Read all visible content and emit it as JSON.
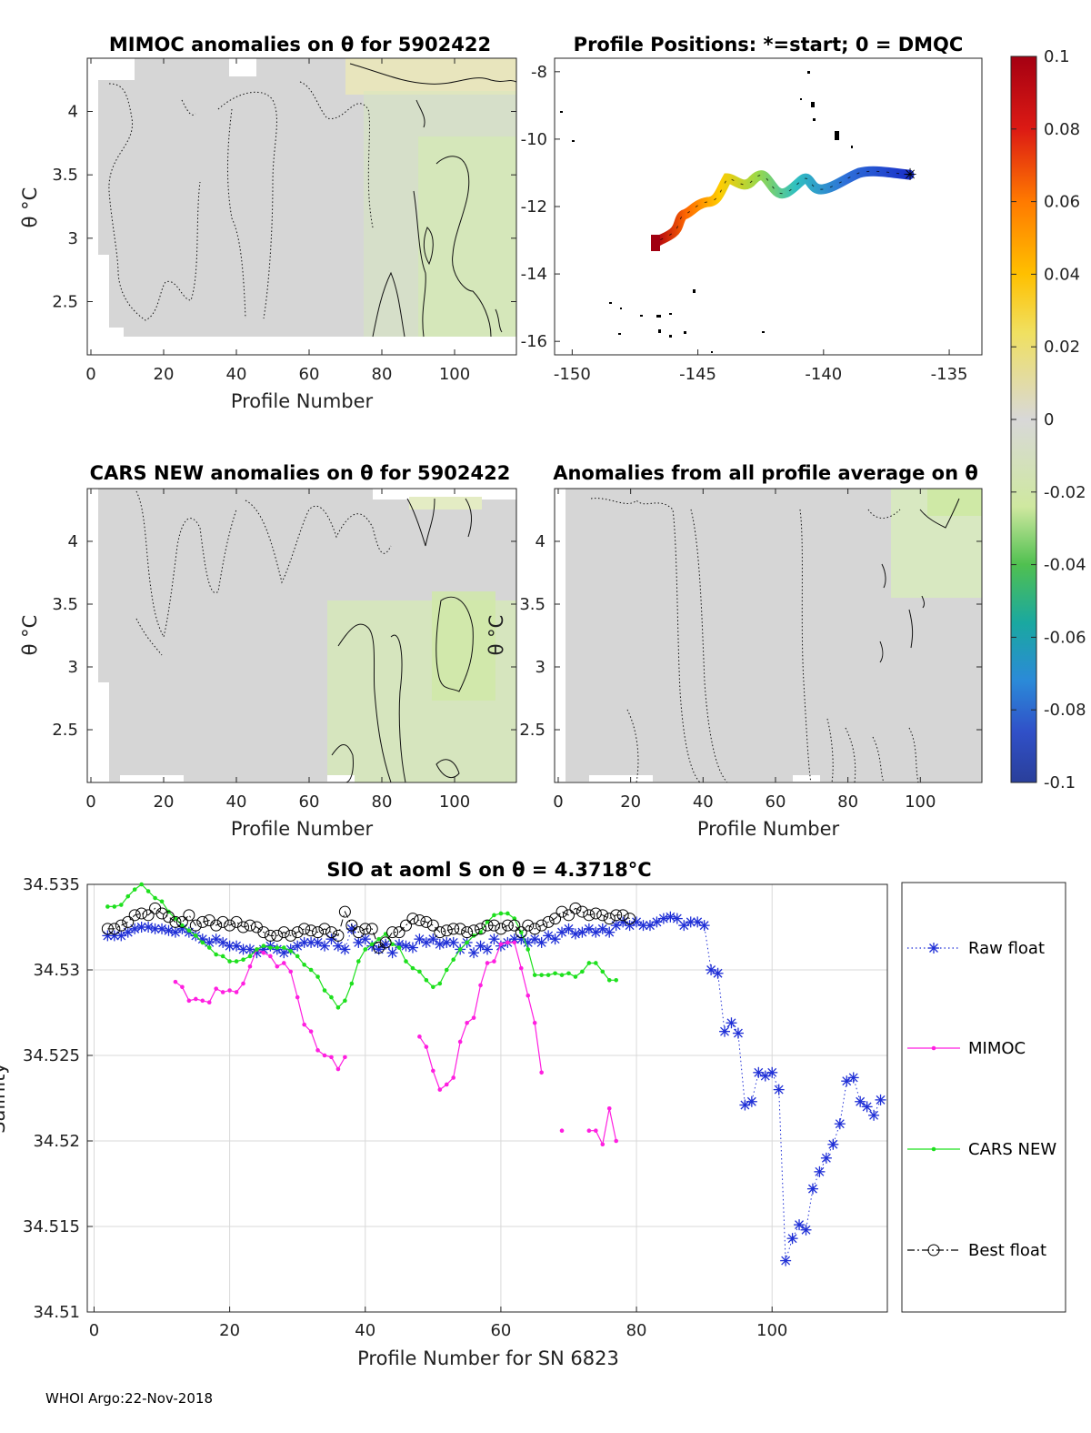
{
  "colors": {
    "raw": "#1f2fd6",
    "mimoc": "#ff1fe0",
    "cars": "#1ee01e",
    "best": "#000000",
    "field_base": "#d6d6d6",
    "field_pos": "#f0ecb0",
    "field_neg": "#d8ecc0"
  },
  "footer": "WHOI Argo:22-Nov-2018",
  "panels": {
    "mimoc": {
      "title": "MIMOC anomalies on θ  for 5902422",
      "xlabel": "Profile Number",
      "ylabel": "θ °C",
      "xticks": [
        0,
        20,
        40,
        60,
        80,
        100
      ],
      "yticks": [
        2.5,
        3,
        3.5,
        4
      ],
      "xlim": [
        -1,
        117
      ],
      "ylim": [
        2.08,
        4.42
      ]
    },
    "positions": {
      "title": "Profile Positions: *=start; 0 = DMQC",
      "xticks": [
        -150,
        -145,
        -140,
        -135
      ],
      "yticks": [
        -8,
        -10,
        -12,
        -14,
        -16
      ],
      "xlim": [
        -150.7,
        -133.7
      ],
      "ylim": [
        -16.4,
        -7.6
      ]
    },
    "cars": {
      "title": "CARS NEW anomalies on θ for 5902422",
      "xlabel": "Profile Number",
      "ylabel": "θ °C",
      "xticks": [
        0,
        20,
        40,
        60,
        80,
        100
      ],
      "yticks": [
        2.5,
        3,
        3.5,
        4
      ],
      "xlim": [
        -1,
        117
      ],
      "ylim": [
        2.08,
        4.42
      ]
    },
    "avg": {
      "title": "Anomalies from all profile average on θ",
      "xlabel": "Profile Number",
      "ylabel": "θ °C",
      "xticks": [
        0,
        20,
        40,
        60,
        80,
        100
      ],
      "yticks": [
        2.5,
        3,
        3.5,
        4
      ],
      "xlim": [
        -1,
        117
      ],
      "ylim": [
        2.08,
        4.42
      ]
    }
  },
  "colorbar": {
    "ticks": [
      "0.1",
      "0.08",
      "0.06",
      "0.04",
      "0.02",
      "0",
      "-0.02",
      "-0.04",
      "-0.06",
      "-0.08",
      "-0.1"
    ],
    "range": [
      -0.1,
      0.1
    ]
  },
  "chart_data": {
    "type": "line",
    "title": "SIO at aoml S on θ = 4.3718°C",
    "xlabel": "Profile Number for SN 6823",
    "ylabel": "Salinity",
    "xlim": [
      -1,
      117
    ],
    "ylim": [
      34.51,
      34.535
    ],
    "xticks": [
      0,
      20,
      40,
      60,
      80,
      100
    ],
    "yticks": [
      "34.51",
      "34.515",
      "34.52",
      "34.525",
      "34.53",
      "34.535"
    ],
    "grid": true,
    "legend_position": "right",
    "series": [
      {
        "name": "Raw float",
        "key": "raw",
        "marker": "asterisk",
        "line": "dotted",
        "x": [
          2,
          3,
          4,
          5,
          6,
          7,
          8,
          9,
          10,
          11,
          12,
          13,
          14,
          15,
          16,
          17,
          18,
          19,
          20,
          21,
          22,
          23,
          24,
          25,
          26,
          27,
          28,
          29,
          30,
          31,
          32,
          33,
          34,
          35,
          36,
          37,
          38,
          39,
          40,
          41,
          42,
          43,
          44,
          45,
          46,
          47,
          48,
          49,
          50,
          51,
          52,
          53,
          54,
          55,
          56,
          57,
          58,
          59,
          60,
          61,
          62,
          63,
          64,
          65,
          66,
          67,
          68,
          69,
          70,
          71,
          72,
          73,
          74,
          75,
          76,
          77,
          78,
          79,
          80,
          81,
          82,
          83,
          84,
          85,
          86,
          87,
          88,
          89,
          90,
          91,
          92,
          93,
          94,
          95,
          96,
          97,
          98,
          99,
          100,
          101,
          102,
          103,
          104,
          105,
          106,
          107,
          108,
          109,
          110,
          111,
          112,
          113,
          114,
          115,
          116
        ],
        "y": [
          34.532,
          34.532,
          34.532,
          34.5322,
          34.5324,
          34.5325,
          34.5325,
          34.5324,
          34.5324,
          34.5323,
          34.5322,
          34.5324,
          34.5322,
          34.532,
          34.5318,
          34.5316,
          34.5318,
          34.5316,
          34.5314,
          34.5314,
          34.5312,
          34.5312,
          34.531,
          34.5312,
          34.5314,
          34.5312,
          34.531,
          34.5312,
          34.5314,
          34.5316,
          34.5316,
          34.5316,
          34.5314,
          34.5318,
          34.5314,
          34.5312,
          34.5324,
          34.5316,
          34.5318,
          34.5314,
          34.5312,
          34.5315,
          34.531,
          34.5315,
          34.5314,
          34.5313,
          34.5318,
          34.5316,
          34.5318,
          34.5315,
          34.5316,
          34.5316,
          34.5312,
          34.5316,
          34.531,
          34.5314,
          34.5312,
          34.5318,
          34.5314,
          34.5316,
          34.5318,
          34.5318,
          34.5316,
          34.5318,
          34.5316,
          34.532,
          34.5318,
          34.5322,
          34.5324,
          34.5321,
          34.5322,
          34.5324,
          34.5322,
          34.5324,
          34.5322,
          34.5326,
          34.5328,
          34.5326,
          34.5328,
          34.5326,
          34.5326,
          34.5328,
          34.533,
          34.5331,
          34.533,
          34.5326,
          34.5328,
          34.5328,
          34.5326,
          34.53,
          34.5298,
          34.5264,
          34.5269,
          34.5263,
          34.5221,
          34.5223,
          34.524,
          34.5238,
          34.524,
          34.523,
          34.513,
          34.5143,
          34.5151,
          34.5148,
          34.5172,
          34.5182,
          34.519,
          34.5198,
          34.521,
          34.5235,
          34.5237,
          34.5223,
          34.522,
          34.5215,
          34.5224
        ]
      },
      {
        "name": "MIMOC",
        "key": "mimoc",
        "marker": "dot",
        "line": "solid",
        "x": [
          12,
          13,
          14,
          15,
          16,
          17,
          18,
          19,
          20,
          21,
          22,
          23,
          24,
          25,
          26,
          27,
          28,
          29,
          30,
          31,
          32,
          33,
          34,
          35,
          36,
          37,
          null,
          48,
          49,
          50,
          51,
          52,
          53,
          54,
          55,
          56,
          57,
          58,
          59,
          60,
          61,
          62,
          63,
          64,
          65,
          66,
          null,
          69,
          null,
          73,
          74,
          75,
          76,
          77
        ],
        "y": [
          34.5293,
          34.529,
          34.5282,
          34.5283,
          34.5282,
          34.5281,
          34.5289,
          34.5287,
          34.5288,
          34.5287,
          34.5292,
          34.5302,
          34.5312,
          34.531,
          34.5308,
          34.5302,
          34.5304,
          34.5299,
          34.5284,
          34.5268,
          34.5264,
          34.5253,
          34.525,
          34.5249,
          34.5242,
          34.5249,
          null,
          34.5261,
          34.5255,
          34.5241,
          34.523,
          34.5233,
          34.5237,
          34.5258,
          34.5269,
          34.5272,
          34.5291,
          34.5304,
          34.5305,
          34.5315,
          34.5316,
          34.5316,
          34.5301,
          34.5285,
          34.5269,
          34.524,
          null,
          34.5206,
          null,
          34.5206,
          34.5206,
          34.5198,
          34.5219,
          34.52
        ]
      },
      {
        "name": "CARS NEW",
        "key": "cars",
        "marker": "dot",
        "line": "solid",
        "x": [
          2,
          3,
          4,
          5,
          6,
          7,
          8,
          9,
          10,
          11,
          12,
          13,
          14,
          15,
          16,
          17,
          18,
          19,
          20,
          21,
          22,
          23,
          24,
          25,
          26,
          27,
          28,
          29,
          30,
          31,
          32,
          33,
          34,
          35,
          36,
          37,
          38,
          39,
          40,
          41,
          42,
          43,
          44,
          45,
          46,
          47,
          48,
          49,
          50,
          51,
          52,
          53,
          54,
          55,
          56,
          57,
          58,
          59,
          60,
          61,
          62,
          63,
          64,
          65,
          66,
          67,
          68,
          69,
          70,
          71,
          72,
          73,
          74,
          75,
          76,
          77
        ],
        "y": [
          34.5337,
          34.5337,
          34.5338,
          34.5343,
          34.5347,
          34.535,
          34.5346,
          34.5342,
          34.534,
          34.5334,
          34.533,
          34.5326,
          34.5323,
          34.532,
          34.5316,
          34.5313,
          34.5309,
          34.5308,
          34.5305,
          34.5305,
          34.5306,
          34.5308,
          34.5312,
          34.5314,
          34.5313,
          34.5313,
          34.5313,
          34.5311,
          34.5308,
          34.5303,
          34.53,
          34.5296,
          34.5288,
          34.5284,
          34.5278,
          34.5282,
          34.5292,
          34.5305,
          34.5312,
          34.5315,
          34.5318,
          34.5321,
          34.5315,
          34.5313,
          34.5305,
          34.5301,
          34.5299,
          34.5294,
          34.529,
          34.5292,
          34.53,
          34.5306,
          34.5312,
          34.5316,
          34.532,
          34.5322,
          34.5328,
          34.5332,
          34.5333,
          34.5333,
          34.533,
          34.5322,
          34.5312,
          34.5297,
          34.5297,
          34.5297,
          34.5298,
          34.5297,
          34.5298,
          34.5296,
          34.5299,
          34.5304,
          34.5304,
          34.5299,
          34.5294,
          34.5294
        ]
      },
      {
        "name": "Best float",
        "key": "best",
        "marker": "circle",
        "line": "dashdot",
        "x": [
          2,
          3,
          4,
          5,
          6,
          7,
          8,
          9,
          10,
          11,
          12,
          13,
          14,
          15,
          16,
          17,
          18,
          19,
          20,
          21,
          22,
          23,
          24,
          25,
          26,
          27,
          28,
          29,
          30,
          31,
          32,
          33,
          34,
          35,
          36,
          37,
          38,
          39,
          40,
          41,
          42,
          43,
          44,
          45,
          46,
          47,
          48,
          49,
          50,
          51,
          52,
          53,
          54,
          55,
          56,
          57,
          58,
          59,
          60,
          61,
          62,
          63,
          64,
          65,
          66,
          67,
          68,
          69,
          70,
          71,
          72,
          73,
          74,
          75,
          76,
          77,
          78,
          79
        ],
        "y": [
          34.5324,
          34.5324,
          34.5326,
          34.5328,
          34.5332,
          34.5333,
          34.5332,
          34.5336,
          34.5333,
          34.5331,
          34.5328,
          34.5328,
          34.5332,
          34.5326,
          34.5328,
          34.5329,
          34.5326,
          34.5328,
          34.5326,
          34.5328,
          34.5325,
          34.5326,
          34.5325,
          34.5322,
          34.532,
          34.532,
          34.5322,
          34.532,
          34.5322,
          34.5324,
          34.5323,
          34.5322,
          34.5324,
          34.5322,
          34.532,
          34.5334,
          34.5326,
          34.5322,
          34.5324,
          34.5324,
          34.5313,
          34.5316,
          34.5322,
          34.5322,
          34.5326,
          34.533,
          34.5329,
          34.5328,
          34.5326,
          34.5322,
          34.5323,
          34.5324,
          34.5324,
          34.5322,
          34.5323,
          34.5324,
          34.5326,
          34.5326,
          34.5324,
          34.5326,
          34.5326,
          34.5322,
          34.5326,
          34.5324,
          34.5326,
          34.5328,
          34.533,
          34.5334,
          34.5332,
          34.5336,
          34.5334,
          34.5332,
          34.5333,
          34.5332,
          34.533,
          34.5332,
          34.5332,
          34.533
        ]
      }
    ]
  }
}
